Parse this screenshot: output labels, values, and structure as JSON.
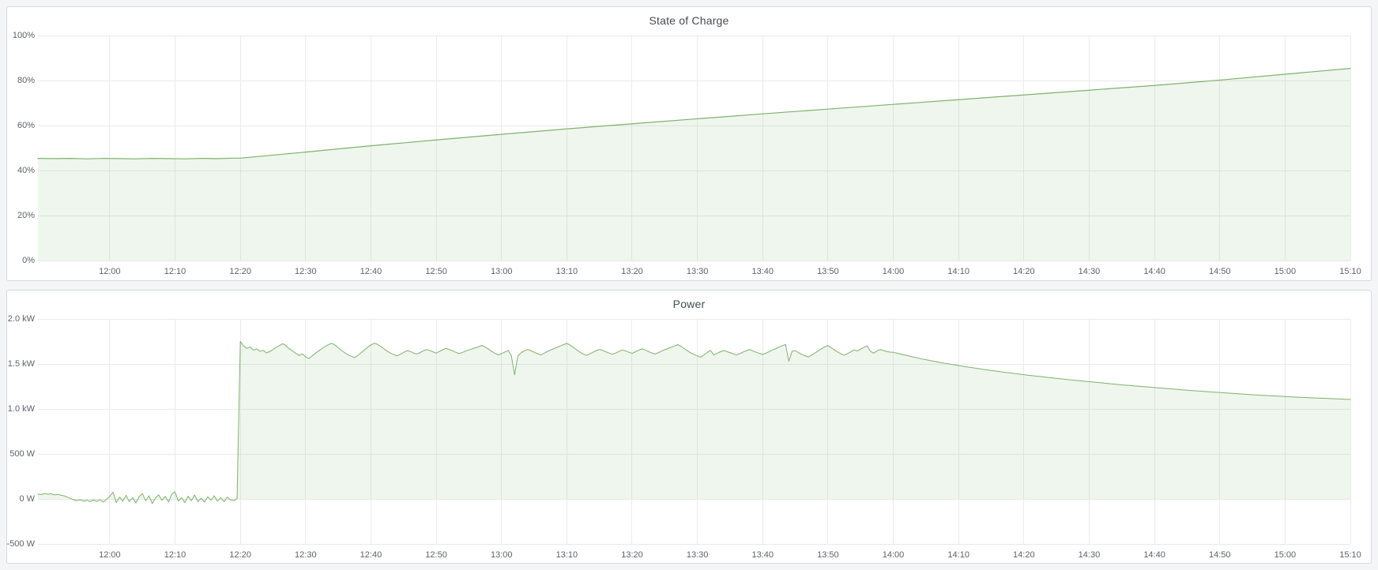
{
  "page": {
    "background": "#f4f5f6",
    "panel_border": "#d8d9da",
    "accent_green": "#7eb26d"
  },
  "chart_data": [
    {
      "type": "area",
      "title": "State of Charge",
      "xlabel": "",
      "ylabel": "",
      "grid": true,
      "legend": "none",
      "ylim": [
        0,
        100
      ],
      "x_minutes_total": 201,
      "y_axis": {
        "min": 0,
        "max": 100,
        "ticks": [
          {
            "value": 0,
            "label": "0%"
          },
          {
            "value": 20,
            "label": "20%"
          },
          {
            "value": 40,
            "label": "40%"
          },
          {
            "value": 60,
            "label": "60%"
          },
          {
            "value": 80,
            "label": "80%"
          },
          {
            "value": 100,
            "label": "100%"
          }
        ]
      },
      "x_axis": {
        "ticks": [
          {
            "t": 11,
            "label": "12:00"
          },
          {
            "t": 21,
            "label": "12:10"
          },
          {
            "t": 31,
            "label": "12:20"
          },
          {
            "t": 41,
            "label": "12:30"
          },
          {
            "t": 51,
            "label": "12:40"
          },
          {
            "t": 61,
            "label": "12:50"
          },
          {
            "t": 71,
            "label": "13:00"
          },
          {
            "t": 81,
            "label": "13:10"
          },
          {
            "t": 91,
            "label": "13:20"
          },
          {
            "t": 101,
            "label": "13:30"
          },
          {
            "t": 111,
            "label": "13:40"
          },
          {
            "t": 121,
            "label": "13:50"
          },
          {
            "t": 131,
            "label": "14:00"
          },
          {
            "t": 141,
            "label": "14:10"
          },
          {
            "t": 151,
            "label": "14:20"
          },
          {
            "t": 161,
            "label": "14:30"
          },
          {
            "t": 171,
            "label": "14:40"
          },
          {
            "t": 181,
            "label": "14:50"
          },
          {
            "t": 191,
            "label": "15:00"
          },
          {
            "t": 201,
            "label": "15:10"
          }
        ]
      },
      "series": {
        "name": "state_of_charge_percent",
        "color": "#7eb26d",
        "fill": "rgba(126,178,109,0.12)",
        "line_width": 1.2,
        "baseline": 0,
        "segments": [
          {
            "t0": 0,
            "dt": 2.5,
            "values": [
              45.4,
              45.3,
              45.4,
              45.2,
              45.4,
              45.3,
              45.2,
              45.4,
              45.3,
              45.2,
              45.4,
              45.3,
              45.5
            ]
          },
          {
            "t0": 31,
            "dt": 10,
            "values": [
              45.5,
              48.2,
              51.0,
              53.6,
              56.1,
              58.5,
              60.8,
              63.0,
              65.2,
              67.3,
              69.4,
              71.5,
              73.6,
              75.7,
              77.8,
              80.2,
              82.8,
              85.4
            ]
          }
        ]
      }
    },
    {
      "type": "area",
      "title": "Power",
      "xlabel": "",
      "ylabel": "",
      "grid": true,
      "legend": "none",
      "ylim": [
        -500,
        2000
      ],
      "x_minutes_total": 201,
      "y_axis": {
        "min": -500,
        "max": 2000,
        "ticks": [
          {
            "value": -500,
            "label": "-500 W"
          },
          {
            "value": 0,
            "label": "0 W"
          },
          {
            "value": 500,
            "label": "500 W"
          },
          {
            "value": 1000,
            "label": "1.0 kW"
          },
          {
            "value": 1500,
            "label": "1.5 kW"
          },
          {
            "value": 2000,
            "label": "2.0 kW"
          }
        ]
      },
      "x_axis": {
        "ticks": [
          {
            "t": 11,
            "label": "12:00"
          },
          {
            "t": 21,
            "label": "12:10"
          },
          {
            "t": 31,
            "label": "12:20"
          },
          {
            "t": 41,
            "label": "12:30"
          },
          {
            "t": 51,
            "label": "12:40"
          },
          {
            "t": 61,
            "label": "12:50"
          },
          {
            "t": 71,
            "label": "13:00"
          },
          {
            "t": 81,
            "label": "13:10"
          },
          {
            "t": 91,
            "label": "13:20"
          },
          {
            "t": 101,
            "label": "13:30"
          },
          {
            "t": 111,
            "label": "13:40"
          },
          {
            "t": 121,
            "label": "13:50"
          },
          {
            "t": 131,
            "label": "14:00"
          },
          {
            "t": 141,
            "label": "14:10"
          },
          {
            "t": 151,
            "label": "14:20"
          },
          {
            "t": 161,
            "label": "14:30"
          },
          {
            "t": 171,
            "label": "14:40"
          },
          {
            "t": 181,
            "label": "14:50"
          },
          {
            "t": 191,
            "label": "15:00"
          },
          {
            "t": 201,
            "label": "15:10"
          }
        ]
      },
      "series": {
        "name": "power_watts",
        "color": "#7eb26d",
        "fill": "rgba(126,178,109,0.12)",
        "line_width": 1,
        "baseline": 0,
        "segments": [
          {
            "t0": 0,
            "dt": 0.5,
            "values": [
              55,
              48,
              60,
              52,
              58,
              45,
              50,
              42,
              35,
              20,
              5,
              -10,
              -20,
              -8,
              -25,
              -15,
              -30,
              -12,
              -28,
              -10,
              -35,
              -5,
              30,
              75,
              -40,
              20,
              -25,
              40,
              -30,
              15,
              -45,
              25,
              60,
              -20,
              35,
              -50,
              10,
              45,
              -15,
              30,
              -35,
              55,
              80,
              -25,
              15,
              -40,
              30,
              -20,
              45,
              -30,
              10,
              -35,
              25,
              -15,
              35,
              -25,
              15,
              -30,
              20,
              -10,
              -20,
              5
            ]
          },
          {
            "t0": 31,
            "dt": 0.5,
            "values": [
              1750,
              1700,
              1672,
              1690,
              1655,
              1668,
              1640,
              1652,
              1622,
              1638,
              1660,
              1685,
              1705,
              1725,
              1702,
              1668,
              1645,
              1618,
              1595,
              1612,
              1580,
              1560,
              1590,
              1620,
              1645,
              1670,
              1695,
              1715,
              1730,
              1710,
              1680,
              1650,
              1625,
              1600,
              1585,
              1570,
              1595,
              1625,
              1655,
              1685,
              1712,
              1730,
              1718,
              1695,
              1668,
              1642,
              1620,
              1605,
              1590,
              1608,
              1628,
              1648,
              1640,
              1622,
              1610,
              1625,
              1645,
              1660,
              1650,
              1635,
              1620,
              1640,
              1658,
              1672,
              1660,
              1645,
              1630,
              1615,
              1628,
              1642,
              1655,
              1668,
              1680,
              1692,
              1705,
              1688,
              1665,
              1640,
              1618,
              1600,
              1615,
              1632,
              1650,
              1595,
              1380,
              1590,
              1625,
              1645,
              1662,
              1648,
              1630,
              1615,
              1600,
              1618,
              1638,
              1655,
              1670,
              1685,
              1700,
              1715,
              1728,
              1710,
              1685,
              1658,
              1632,
              1610,
              1595,
              1612,
              1630,
              1648,
              1662,
              1650,
              1635,
              1620,
              1608,
              1622,
              1640,
              1655,
              1645,
              1630,
              1618,
              1635,
              1652,
              1668,
              1655,
              1638,
              1622,
              1610,
              1625,
              1642,
              1658,
              1672,
              1686,
              1700,
              1715,
              1695,
              1670,
              1645,
              1622,
              1605,
              1590,
              1575,
              1600,
              1628,
              1652,
              1600,
              1618,
              1635,
              1650,
              1638,
              1625,
              1612,
              1600,
              1615,
              1632,
              1648,
              1660,
              1645,
              1630,
              1618,
              1605,
              1620,
              1638,
              1655,
              1670,
              1688,
              1702,
              1716,
              1530,
              1640,
              1648,
              1625,
              1605,
              1590,
              1578,
              1600,
              1622,
              1645,
              1668,
              1690,
              1705,
              1680,
              1655,
              1632,
              1612,
              1598,
              1615,
              1635,
              1655,
              1645,
              1665,
              1685,
              1700,
              1640,
              1620,
              1645,
              1660,
              1650,
              1638,
              1632
            ]
          },
          {
            "t0": 131,
            "dt": 1,
            "values": [
              1630,
              1612,
              1595,
              1578,
              1562,
              1547,
              1533,
              1519,
              1506,
              1494,
              1482,
              1470,
              1459,
              1448,
              1438,
              1428,
              1418,
              1408,
              1399,
              1390,
              1381,
              1372,
              1364,
              1356,
              1348,
              1340,
              1332,
              1324,
              1317,
              1310,
              1303,
              1296,
              1289,
              1282,
              1275,
              1268,
              1262,
              1256,
              1250,
              1244,
              1238,
              1232,
              1226,
              1220,
              1214,
              1208,
              1203,
              1198,
              1193,
              1188,
              1183,
              1178,
              1173,
              1168,
              1163,
              1158,
              1154,
              1150,
              1146,
              1142,
              1138,
              1134,
              1130,
              1127,
              1124,
              1121,
              1118,
              1115,
              1112,
              1109,
              1106
            ]
          }
        ]
      }
    }
  ]
}
